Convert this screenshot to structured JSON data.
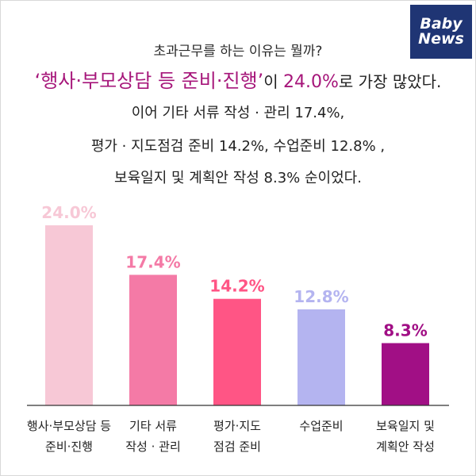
{
  "logo": {
    "line1": "Baby",
    "line2": "News"
  },
  "header": {
    "question": "초과근무를 하는 이유는 뭘까?",
    "headline_quote_open": "‘",
    "headline_highlight": "행사·부모상담 등 준비·진행",
    "headline_quote_close": "’",
    "headline_mid": "이 ",
    "headline_pct": "24.0%",
    "headline_end": "로 가장 많았다.",
    "line1": "이어 기타 서류 작성 · 관리 17.4%,",
    "line2": "평가 · 지도점검 준비 14.2%, 수업준비 12.8% ,",
    "line3": "보육일지 및 계획안 작성 8.3% 순이었다."
  },
  "chart_data": {
    "type": "bar",
    "categories": [
      [
        "행사·부모상담 등",
        "준비·진행"
      ],
      [
        "기타 서류",
        "작성 · 관리"
      ],
      [
        "평가·지도",
        "점검 준비"
      ],
      [
        "수업준비"
      ],
      [
        "보육일지 및",
        "계획안 작성"
      ]
    ],
    "values": [
      24.0,
      17.4,
      14.2,
      12.8,
      8.3
    ],
    "value_labels": [
      "24.0%",
      "17.4%",
      "14.2%",
      "12.8%",
      "8.3%"
    ],
    "colors": [
      "#f7c8d6",
      "#f47aa6",
      "#ff5585",
      "#b4b4f0",
      "#a10f85"
    ],
    "ylim": [
      0,
      24.0
    ],
    "grid": false,
    "legend": "none"
  }
}
